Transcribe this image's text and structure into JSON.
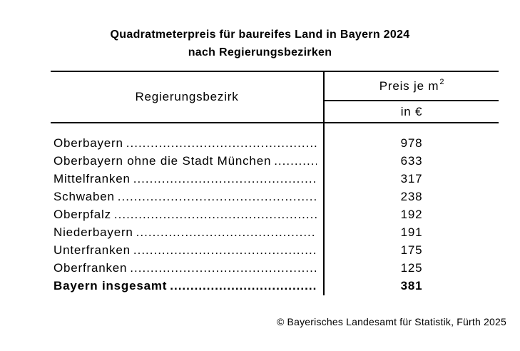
{
  "title": {
    "line1": "Quadratmeterpreis für baureifes Land in Bayern 2024",
    "line2": "nach Regierungsbezirken"
  },
  "table": {
    "col1_header": "Regierungsbezirk",
    "col2_header_base": "Preis je m",
    "col2_header_sup": "2",
    "col2_unit": "in €",
    "leader_dots": "..............................................................................................................",
    "rows": [
      {
        "label": "Oberbayern",
        "value": "978",
        "bold": false
      },
      {
        "label": "Oberbayern ohne die Stadt München",
        "value": "633",
        "bold": false
      },
      {
        "label": "Mittelfranken",
        "value": "317",
        "bold": false
      },
      {
        "label": "Schwaben",
        "value": "238",
        "bold": false
      },
      {
        "label": "Oberpfalz",
        "value": "192",
        "bold": false
      },
      {
        "label": "Niederbayern",
        "value": "191",
        "bold": false
      },
      {
        "label": "Unterfranken",
        "value": "175",
        "bold": false
      },
      {
        "label": "Oberfranken",
        "value": "125",
        "bold": false
      },
      {
        "label": "Bayern insgesamt",
        "value": "381",
        "bold": true
      }
    ]
  },
  "footer": {
    "copyright": "© Bayerisches Landesamt für Statistik, Fürth 2025"
  },
  "colors": {
    "text": "#000000",
    "background": "#ffffff",
    "rule": "#000000"
  },
  "chart_data": {
    "type": "table",
    "title": "Quadratmeterpreis für baureifes Land in Bayern 2024 nach Regierungsbezirken",
    "columns": [
      "Regierungsbezirk",
      "Preis je m² in €"
    ],
    "categories": [
      "Oberbayern",
      "Oberbayern ohne die Stadt München",
      "Mittelfranken",
      "Schwaben",
      "Oberpfalz",
      "Niederbayern",
      "Unterfranken",
      "Oberfranken",
      "Bayern insgesamt"
    ],
    "values": [
      978,
      633,
      317,
      238,
      192,
      191,
      175,
      125,
      381
    ],
    "source": "© Bayerisches Landesamt für Statistik, Fürth 2025"
  }
}
